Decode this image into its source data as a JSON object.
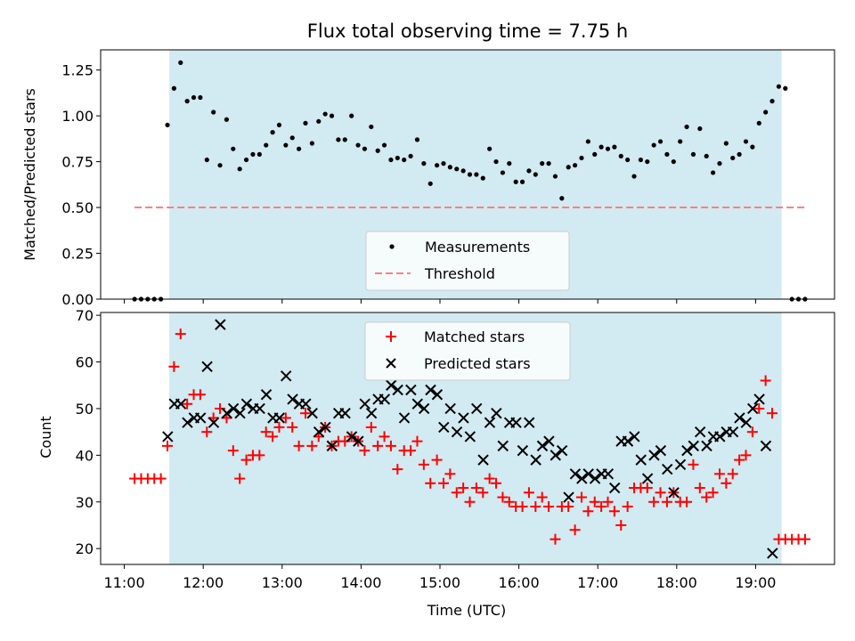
{
  "title": "Flux total observing time = 7.75 h",
  "colors": {
    "night_shade": "#add8e6",
    "measurement": "#000000",
    "threshold": "#ff7f7f",
    "matched": "#ff0000",
    "predicted": "#000000"
  },
  "chart_data": [
    {
      "type": "scatter",
      "ylabel": "Matched/Predicted stars",
      "xlabel": "",
      "ylim": [
        0,
        1.36
      ],
      "yticks": [
        "0.00",
        "0.25",
        "0.50",
        "0.75",
        "1.00",
        "1.25"
      ],
      "xlim_hours": [
        10.7,
        20.0
      ],
      "shaded_span_hours": [
        11.57,
        19.33
      ],
      "legend": {
        "placement": "lower-center",
        "entries": [
          "Measurements",
          "Threshold"
        ]
      },
      "threshold": {
        "name": "Threshold",
        "value": 0.5,
        "x_start": 11.13,
        "x_end": 19.63
      },
      "series": [
        {
          "name": "Measurements",
          "marker": "dot",
          "x_start": 11.13,
          "x_step": 0.0833,
          "values": [
            0.0,
            0.0,
            0.0,
            0.0,
            0.0,
            0.95,
            1.15,
            1.29,
            1.08,
            1.1,
            1.1,
            0.76,
            1.02,
            0.73,
            0.98,
            0.82,
            0.71,
            0.76,
            0.79,
            0.79,
            0.84,
            0.91,
            0.95,
            0.84,
            0.88,
            0.82,
            0.96,
            0.85,
            0.97,
            1.01,
            1.0,
            0.87,
            0.87,
            1.0,
            0.84,
            0.82,
            0.94,
            0.81,
            0.84,
            0.76,
            0.77,
            0.76,
            0.78,
            0.87,
            0.74,
            0.63,
            0.73,
            0.74,
            0.72,
            0.71,
            0.7,
            0.68,
            0.68,
            0.66,
            0.82,
            0.75,
            0.69,
            0.74,
            0.64,
            0.64,
            0.7,
            0.68,
            0.74,
            0.74,
            0.67,
            0.55,
            0.72,
            0.73,
            0.77,
            0.86,
            0.79,
            0.83,
            0.82,
            0.83,
            0.78,
            0.76,
            0.67,
            0.76,
            0.75,
            0.84,
            0.86,
            0.79,
            0.75,
            0.86,
            0.94,
            0.79,
            0.93,
            0.78,
            0.69,
            0.74,
            0.85,
            0.77,
            0.79,
            0.86,
            0.83,
            0.96,
            1.02,
            1.08,
            1.16,
            1.15,
            0.0,
            0.0,
            0.0
          ]
        }
      ]
    },
    {
      "type": "scatter",
      "ylabel": "Count",
      "xlabel": "Time (UTC)",
      "ylim": [
        16.6,
        70.6
      ],
      "yticks": [
        "20",
        "30",
        "40",
        "50",
        "60",
        "70"
      ],
      "xticks": [
        "11:00",
        "12:00",
        "13:00",
        "14:00",
        "15:00",
        "16:00",
        "17:00",
        "18:00",
        "19:00"
      ],
      "xticks_hours": [
        11,
        12,
        13,
        14,
        15,
        16,
        17,
        18,
        19
      ],
      "xlim_hours": [
        10.7,
        20.0
      ],
      "shaded_span_hours": [
        11.57,
        19.33
      ],
      "legend": {
        "placement": "upper-center",
        "entries": [
          "Matched stars",
          "Predicted stars"
        ]
      },
      "series": [
        {
          "name": "Matched stars",
          "marker": "plus",
          "x_start": 11.13,
          "x_step": 0.0833,
          "values": [
            35,
            35,
            35,
            35,
            35,
            42,
            59,
            66,
            51,
            53,
            53,
            45,
            48,
            50,
            48,
            41,
            35,
            39,
            40,
            40,
            45,
            44,
            46,
            48,
            46,
            42,
            49,
            42,
            44,
            46,
            42,
            43,
            43,
            44,
            43,
            41,
            46,
            42,
            44,
            42,
            37,
            41,
            41,
            43,
            38,
            34,
            39,
            34,
            36,
            32,
            33,
            30,
            33,
            32,
            35,
            34,
            31,
            30,
            29,
            29,
            32,
            29,
            31,
            29,
            22,
            29,
            29,
            24,
            31,
            28,
            30,
            29,
            30,
            28,
            25,
            29,
            33,
            33,
            33,
            30,
            32,
            30,
            32,
            30,
            30,
            38,
            33,
            31,
            32,
            36,
            34,
            36,
            39,
            40,
            45,
            50,
            56,
            49,
            22,
            22,
            22,
            22,
            22
          ]
        },
        {
          "name": "Predicted stars",
          "marker": "x",
          "x_start": 11.55,
          "x_step": 0.0833,
          "values": [
            44,
            51,
            51,
            47,
            48,
            48,
            59,
            47,
            68,
            49,
            50,
            49,
            51,
            50,
            50,
            53,
            48,
            48,
            57,
            52,
            51,
            51,
            49,
            45,
            46,
            42,
            49,
            49,
            44,
            43,
            51,
            49,
            52,
            52,
            55,
            54,
            48,
            54,
            51,
            50,
            54,
            53,
            46,
            50,
            45,
            48,
            44,
            50,
            39,
            47,
            49,
            42,
            47,
            47,
            41,
            47,
            39,
            42,
            43,
            40,
            41,
            31,
            36,
            35,
            36,
            35,
            36,
            36,
            33,
            43,
            43,
            44,
            39,
            35,
            40,
            41,
            37,
            32,
            38,
            41,
            42,
            45,
            42,
            44,
            44,
            45,
            45,
            48,
            47,
            50,
            52,
            42,
            19
          ]
        }
      ]
    }
  ]
}
